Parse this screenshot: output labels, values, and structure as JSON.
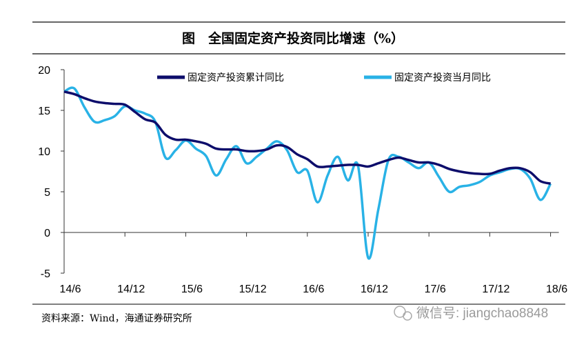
{
  "chart_data": {
    "type": "line",
    "title": "图　全国固定资产投资同比增速（%）",
    "xlabel": "",
    "ylabel": "",
    "ylim": [
      -5,
      20
    ],
    "yticks": [
      "20",
      "15",
      "10",
      "5",
      "0",
      "-5"
    ],
    "ytick_values": [
      20,
      15,
      10,
      5,
      0,
      -5
    ],
    "xtick_labels": [
      "14/6",
      "14/12",
      "15/6",
      "15/12",
      "16/6",
      "16/12",
      "17/6",
      "17/12",
      "18/6"
    ],
    "x_start": "2014-06",
    "x_end": "2018-06",
    "frequency": "monthly",
    "legend_position": "top",
    "series": [
      {
        "name": "固定资产投资累计同比",
        "color": "#0d0d6b",
        "values": [
          17.3,
          17.0,
          16.5,
          16.1,
          15.9,
          15.8,
          15.7,
          14.8,
          13.9,
          13.5,
          12.0,
          11.4,
          11.4,
          11.2,
          10.9,
          10.3,
          10.2,
          10.2,
          10.0,
          10.0,
          10.2,
          10.7,
          10.5,
          9.6,
          9.0,
          8.1,
          8.1,
          8.2,
          8.3,
          8.3,
          8.1,
          8.5,
          8.9,
          9.2,
          8.9,
          8.6,
          8.6,
          8.3,
          7.8,
          7.5,
          7.3,
          7.2,
          7.2,
          7.6,
          7.9,
          7.9,
          7.4,
          6.3,
          6.0
        ]
      },
      {
        "name": "固定资产投资当月同比",
        "color": "#29b2e6",
        "values": [
          17.3,
          17.7,
          15.4,
          13.6,
          13.8,
          14.3,
          15.5,
          15.0,
          14.6,
          13.6,
          9.2,
          10.1,
          11.3,
          10.3,
          9.4,
          7.0,
          9.0,
          10.6,
          8.5,
          9.3,
          10.3,
          11.2,
          10.1,
          7.4,
          7.6,
          3.7,
          7.0,
          9.3,
          6.4,
          8.2,
          -3.1,
          2.8,
          8.9,
          9.3,
          8.6,
          7.9,
          8.6,
          6.8,
          5.0,
          5.6,
          5.8,
          6.2,
          7.0,
          7.4,
          7.8,
          7.8,
          6.6,
          4.0,
          6.0
        ]
      }
    ]
  },
  "source": "资料来源：Wind，海通证券研究所",
  "watermark": "微信号: jiangchao8848"
}
